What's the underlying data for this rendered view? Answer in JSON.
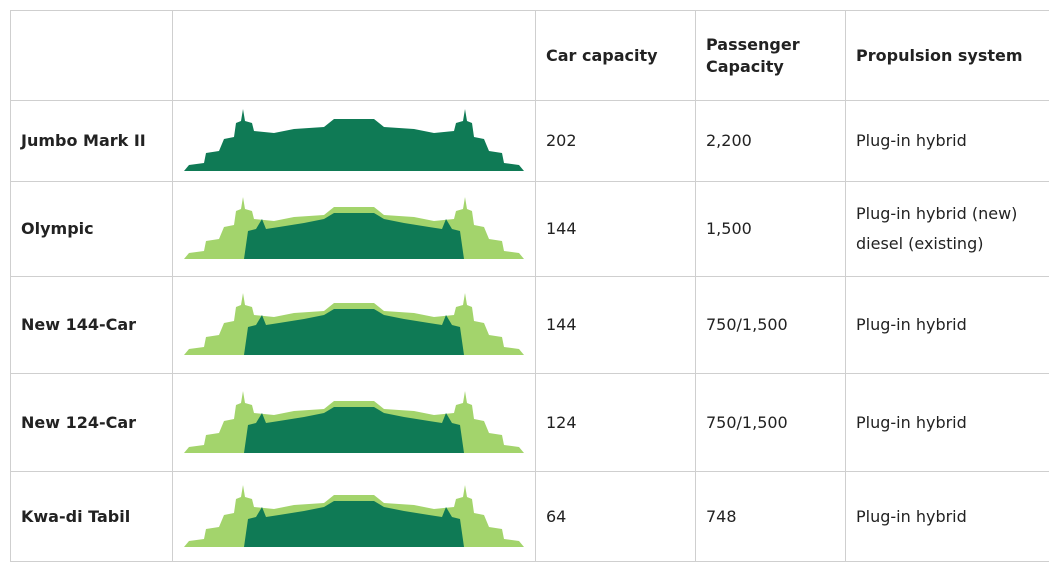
{
  "table": {
    "header": [
      "Car capacity",
      "Passenger Capacity",
      "Propulsion system"
    ],
    "rows": [
      {
        "name": "Jumbo Mark II",
        "car_capacity": 202,
        "passenger_capacity": "2,200",
        "propulsion": [
          "Plug-in hybrid"
        ]
      },
      {
        "name": "Olympic",
        "car_capacity": 144,
        "passenger_capacity": "1,500",
        "propulsion": [
          "Plug-in hybrid (new)",
          "diesel (existing)"
        ]
      },
      {
        "name": "New 144-Car",
        "car_capacity": 144,
        "passenger_capacity": "750/1,500",
        "propulsion": [
          "Plug-in hybrid"
        ]
      },
      {
        "name": "New 124-Car",
        "car_capacity": 124,
        "passenger_capacity": "750/1,500",
        "propulsion": [
          "Plug-in hybrid"
        ]
      },
      {
        "name": "Kwa-di Tabil",
        "car_capacity": 64,
        "passenger_capacity": "748",
        "propulsion": [
          "Plug-in hybrid"
        ]
      }
    ]
  }
}
